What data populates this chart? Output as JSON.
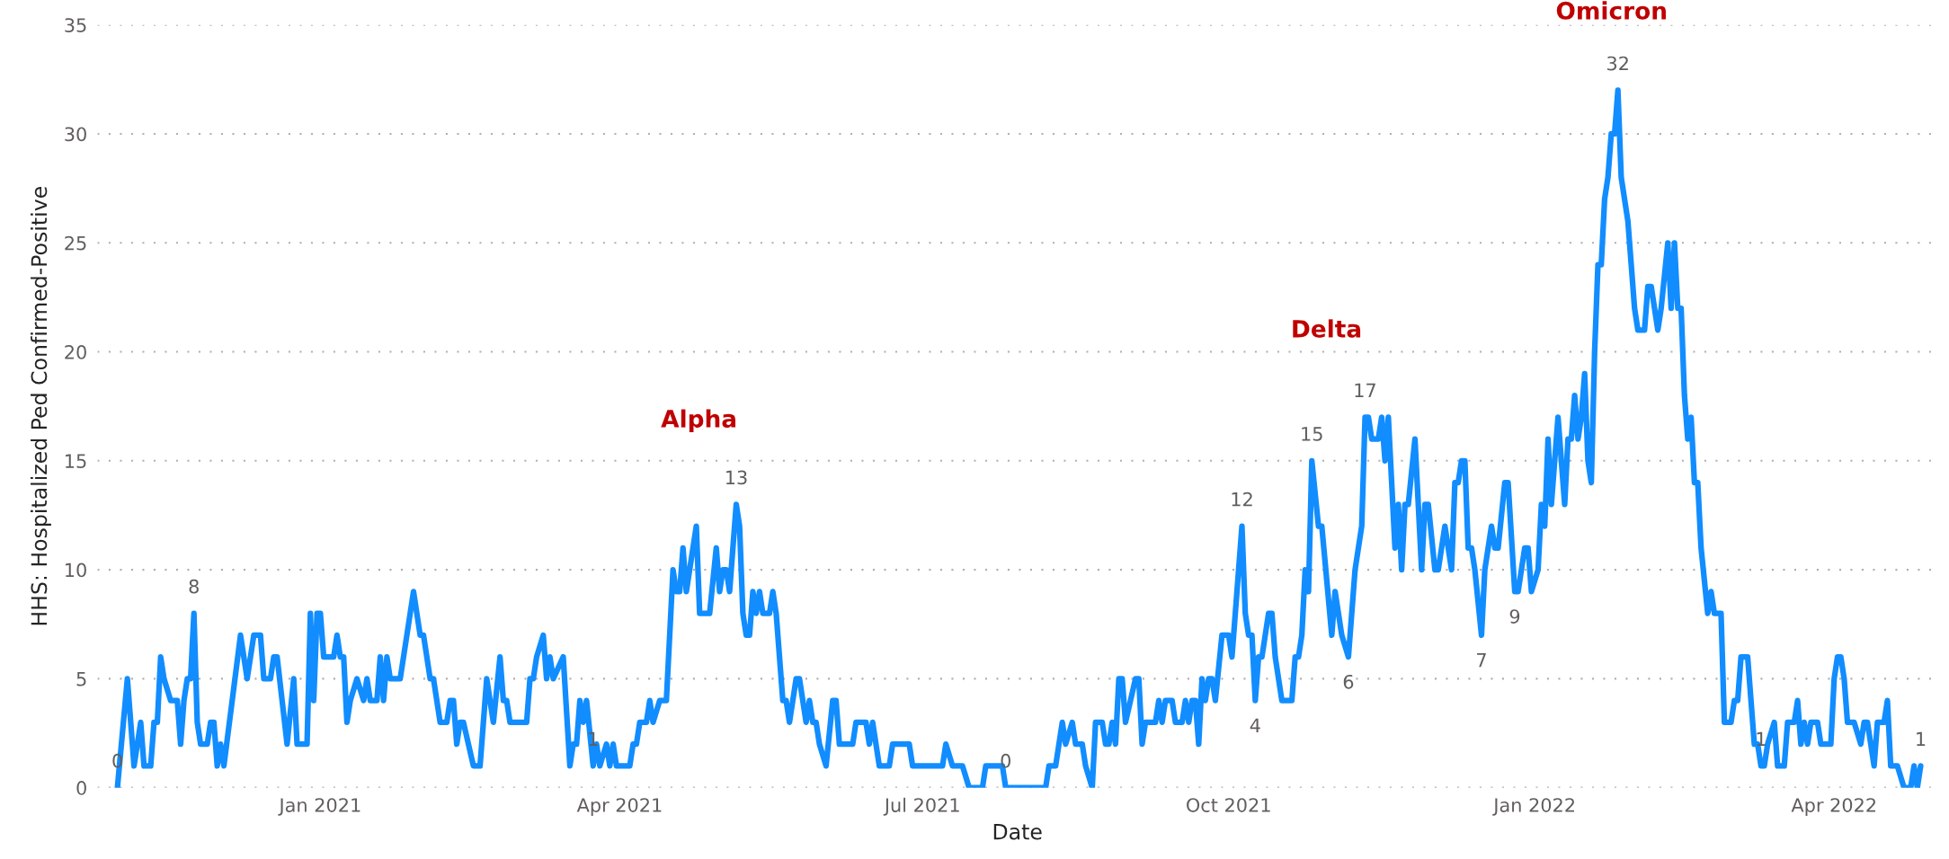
{
  "chart_data": {
    "type": "line",
    "xlabel": "Date",
    "ylabel": "HHS: Hospitalized Ped Confirmed-Positive",
    "x": [
      "2020-11-01",
      "2020-11-04",
      "2020-11-06",
      "2020-11-08",
      "2020-11-09",
      "2020-11-11",
      "2020-11-12",
      "2020-11-13",
      "2020-11-14",
      "2020-11-15",
      "2020-11-17",
      "2020-11-19",
      "2020-11-20",
      "2020-11-21",
      "2020-11-22",
      "2020-11-23",
      "2020-11-24",
      "2020-11-25",
      "2020-11-26",
      "2020-11-28",
      "2020-11-29",
      "2020-11-30",
      "2020-12-01",
      "2020-12-02",
      "2020-12-03",
      "2020-12-08",
      "2020-12-10",
      "2020-12-12",
      "2020-12-14",
      "2020-12-15",
      "2020-12-17",
      "2020-12-18",
      "2020-12-19",
      "2020-12-22",
      "2020-12-24",
      "2020-12-25",
      "2020-12-28",
      "2020-12-29",
      "2020-12-30",
      "2020-12-31",
      "2021-01-01",
      "2021-01-02",
      "2021-01-05",
      "2021-01-06",
      "2021-01-07",
      "2021-01-08",
      "2021-01-09",
      "2021-01-10",
      "2021-01-12",
      "2021-01-14",
      "2021-01-15",
      "2021-01-16",
      "2021-01-18",
      "2021-01-19",
      "2021-01-20",
      "2021-01-21",
      "2021-01-22",
      "2021-01-25",
      "2021-01-29",
      "2021-01-31",
      "2021-02-01",
      "2021-02-03",
      "2021-02-04",
      "2021-02-06",
      "2021-02-08",
      "2021-02-09",
      "2021-02-10",
      "2021-02-11",
      "2021-02-12",
      "2021-02-13",
      "2021-02-16",
      "2021-02-18",
      "2021-02-20",
      "2021-02-22",
      "2021-02-24",
      "2021-02-25",
      "2021-02-26",
      "2021-02-27",
      "2021-03-04",
      "2021-03-05",
      "2021-03-06",
      "2021-03-07",
      "2021-03-09",
      "2021-03-10",
      "2021-03-11",
      "2021-03-12",
      "2021-03-15",
      "2021-03-17",
      "2021-03-18",
      "2021-03-19",
      "2021-03-20",
      "2021-03-21",
      "2021-03-22",
      "2021-03-24",
      "2021-03-25",
      "2021-03-26",
      "2021-03-28",
      "2021-03-29",
      "2021-03-30",
      "2021-03-31",
      "2021-04-04",
      "2021-04-05",
      "2021-04-06",
      "2021-04-07",
      "2021-04-09",
      "2021-04-10",
      "2021-04-11",
      "2021-04-13",
      "2021-04-15",
      "2021-04-17",
      "2021-04-18",
      "2021-04-19",
      "2021-04-20",
      "2021-04-21",
      "2021-04-24",
      "2021-04-25",
      "2021-04-28",
      "2021-04-30",
      "2021-05-01",
      "2021-05-02",
      "2021-05-03",
      "2021-05-04",
      "2021-05-06",
      "2021-05-07",
      "2021-05-08",
      "2021-05-09",
      "2021-05-10",
      "2021-05-11",
      "2021-05-12",
      "2021-05-13",
      "2021-05-14",
      "2021-05-16",
      "2021-05-17",
      "2021-05-18",
      "2021-05-20",
      "2021-05-21",
      "2021-05-22",
      "2021-05-24",
      "2021-05-25",
      "2021-05-27",
      "2021-05-28",
      "2021-05-29",
      "2021-05-30",
      "2021-05-31",
      "2021-06-02",
      "2021-06-04",
      "2021-06-05",
      "2021-06-06",
      "2021-06-10",
      "2021-06-11",
      "2021-06-14",
      "2021-06-15",
      "2021-06-16",
      "2021-06-18",
      "2021-06-21",
      "2021-06-22",
      "2021-06-27",
      "2021-06-28",
      "2021-07-07",
      "2021-07-08",
      "2021-07-10",
      "2021-07-13",
      "2021-07-15",
      "2021-07-19",
      "2021-07-20",
      "2021-07-25",
      "2021-07-26",
      "2021-08-07",
      "2021-08-08",
      "2021-08-10",
      "2021-08-12",
      "2021-08-13",
      "2021-08-15",
      "2021-08-16",
      "2021-08-18",
      "2021-08-19",
      "2021-08-21",
      "2021-08-22",
      "2021-08-24",
      "2021-08-25",
      "2021-08-26",
      "2021-08-27",
      "2021-08-28",
      "2021-08-29",
      "2021-08-30",
      "2021-08-31",
      "2021-09-03",
      "2021-09-04",
      "2021-09-05",
      "2021-09-06",
      "2021-09-09",
      "2021-09-10",
      "2021-09-11",
      "2021-09-12",
      "2021-09-14",
      "2021-09-15",
      "2021-09-17",
      "2021-09-18",
      "2021-09-19",
      "2021-09-20",
      "2021-09-21",
      "2021-09-22",
      "2021-09-23",
      "2021-09-24",
      "2021-09-25",
      "2021-09-26",
      "2021-09-27",
      "2021-09-29",
      "2021-10-01",
      "2021-10-02",
      "2021-10-05",
      "2021-10-06",
      "2021-10-07",
      "2021-10-08",
      "2021-10-09",
      "2021-10-10",
      "2021-10-11",
      "2021-10-13",
      "2021-10-14",
      "2021-10-15",
      "2021-10-17",
      "2021-10-20",
      "2021-10-21",
      "2021-10-22",
      "2021-10-23",
      "2021-10-24",
      "2021-10-25",
      "2021-10-26",
      "2021-10-28",
      "2021-10-29",
      "2021-11-01",
      "2021-11-02",
      "2021-11-04",
      "2021-11-06",
      "2021-11-08",
      "2021-11-10",
      "2021-11-11",
      "2021-11-12",
      "2021-11-13",
      "2021-11-15",
      "2021-11-16",
      "2021-11-17",
      "2021-11-18",
      "2021-11-19",
      "2021-11-20",
      "2021-11-21",
      "2021-11-22",
      "2021-11-23",
      "2021-11-24",
      "2021-11-26",
      "2021-11-28",
      "2021-11-29",
      "2021-11-30",
      "2021-12-02",
      "2021-12-03",
      "2021-12-05",
      "2021-12-07",
      "2021-12-08",
      "2021-12-09",
      "2021-12-10",
      "2021-12-11",
      "2021-12-12",
      "2021-12-13",
      "2021-12-14",
      "2021-12-16",
      "2021-12-17",
      "2021-12-19",
      "2021-12-20",
      "2021-12-21",
      "2021-12-23",
      "2021-12-24",
      "2021-12-26",
      "2021-12-27",
      "2021-12-29",
      "2021-12-30",
      "2021-12-31",
      "2022-01-02",
      "2022-01-03",
      "2022-01-04",
      "2022-01-05",
      "2022-01-06",
      "2022-01-08",
      "2022-01-10",
      "2022-01-11",
      "2022-01-12",
      "2022-01-13",
      "2022-01-14",
      "2022-01-15",
      "2022-01-16",
      "2022-01-17",
      "2022-01-18",
      "2022-01-19",
      "2022-01-20",
      "2022-01-21",
      "2022-01-22",
      "2022-01-23",
      "2022-01-24",
      "2022-01-25",
      "2022-01-26",
      "2022-01-27",
      "2022-01-29",
      "2022-01-30",
      "2022-01-31",
      "2022-02-01",
      "2022-02-03",
      "2022-02-04",
      "2022-02-05",
      "2022-02-07",
      "2022-02-08",
      "2022-02-10",
      "2022-02-11",
      "2022-02-12",
      "2022-02-13",
      "2022-02-14",
      "2022-02-15",
      "2022-02-16",
      "2022-02-17",
      "2022-02-18",
      "2022-02-19",
      "2022-02-20",
      "2022-02-22",
      "2022-02-23",
      "2022-02-24",
      "2022-02-26",
      "2022-02-27",
      "2022-03-01",
      "2022-03-02",
      "2022-03-03",
      "2022-03-04",
      "2022-03-06",
      "2022-03-08",
      "2022-03-09",
      "2022-03-10",
      "2022-03-11",
      "2022-03-12",
      "2022-03-14",
      "2022-03-15",
      "2022-03-17",
      "2022-03-18",
      "2022-03-20",
      "2022-03-21",
      "2022-03-22",
      "2022-03-23",
      "2022-03-24",
      "2022-03-25",
      "2022-03-27",
      "2022-03-28",
      "2022-03-31",
      "2022-04-01",
      "2022-04-02",
      "2022-04-03",
      "2022-04-04",
      "2022-04-05",
      "2022-04-07",
      "2022-04-09",
      "2022-04-10",
      "2022-04-11",
      "2022-04-13",
      "2022-04-14",
      "2022-04-16",
      "2022-04-17",
      "2022-04-18",
      "2022-04-20",
      "2022-04-22",
      "2022-04-24",
      "2022-04-25",
      "2022-04-26",
      "2022-04-27"
    ],
    "values": [
      0,
      5,
      1,
      3,
      1,
      1,
      3,
      3,
      6,
      5,
      4,
      4,
      2,
      4,
      5,
      5,
      8,
      3,
      2,
      2,
      3,
      3,
      1,
      2,
      1,
      7,
      5,
      7,
      7,
      5,
      5,
      6,
      6,
      2,
      5,
      2,
      2,
      8,
      4,
      8,
      8,
      6,
      6,
      7,
      6,
      6,
      3,
      4,
      5,
      4,
      5,
      4,
      4,
      6,
      4,
      6,
      5,
      5,
      9,
      7,
      7,
      5,
      5,
      3,
      3,
      4,
      4,
      2,
      3,
      3,
      1,
      1,
      5,
      3,
      6,
      4,
      4,
      3,
      3,
      5,
      5,
      6,
      7,
      5,
      6,
      5,
      6,
      1,
      2,
      2,
      4,
      3,
      4,
      1,
      2,
      1,
      2,
      1,
      2,
      1,
      1,
      2,
      2,
      3,
      3,
      4,
      3,
      4,
      4,
      10,
      9,
      9,
      11,
      9,
      12,
      8,
      8,
      11,
      9,
      10,
      10,
      9,
      13,
      12,
      8,
      7,
      7,
      9,
      8,
      9,
      8,
      8,
      9,
      8,
      4,
      4,
      3,
      5,
      5,
      3,
      4,
      3,
      3,
      2,
      1,
      4,
      4,
      2,
      2,
      3,
      3,
      2,
      3,
      1,
      1,
      2,
      2,
      1,
      1,
      2,
      1,
      1,
      0,
      0,
      1,
      1,
      0,
      0,
      1,
      1,
      3,
      2,
      3,
      2,
      2,
      1,
      0,
      3,
      3,
      2,
      2,
      3,
      2,
      5,
      5,
      3,
      5,
      5,
      2,
      3,
      3,
      4,
      3,
      4,
      4,
      3,
      3,
      4,
      3,
      4,
      4,
      2,
      5,
      4,
      5,
      5,
      4,
      7,
      7,
      6,
      12,
      8,
      7,
      7,
      4,
      6,
      6,
      8,
      8,
      6,
      4,
      4,
      6,
      6,
      7,
      10,
      9,
      15,
      12,
      12,
      7,
      9,
      7,
      6,
      10,
      12,
      17,
      17,
      16,
      16,
      17,
      15,
      17,
      14,
      11,
      13,
      10,
      13,
      13,
      16,
      10,
      13,
      13,
      10,
      10,
      12,
      10,
      14,
      14,
      15,
      15,
      11,
      11,
      10,
      7,
      10,
      12,
      11,
      11,
      14,
      14,
      9,
      9,
      11,
      11,
      9,
      10,
      13,
      12,
      16,
      13,
      17,
      13,
      16,
      16,
      18,
      16,
      17,
      19,
      15,
      14,
      20,
      24,
      24,
      27,
      28,
      30,
      30,
      32,
      28,
      26,
      24,
      22,
      21,
      21,
      23,
      23,
      21,
      22,
      25,
      22,
      25,
      22,
      22,
      18,
      16,
      17,
      14,
      14,
      11,
      8,
      9,
      8,
      8,
      3,
      3,
      4,
      4,
      6,
      6,
      2,
      2,
      1,
      1,
      2,
      3,
      1,
      1,
      3,
      3,
      4,
      2,
      3,
      2,
      3,
      3,
      2,
      2,
      5,
      6,
      6,
      5,
      3,
      3,
      2,
      3,
      3,
      1,
      3,
      3,
      4,
      1,
      1,
      0,
      0,
      1,
      0,
      1
    ],
    "value_labels": [
      "0",
      null,
      null,
      null,
      null,
      null,
      null,
      null,
      null,
      null,
      null,
      null,
      null,
      null,
      null,
      null,
      "8",
      null,
      null,
      null,
      null,
      null,
      null,
      null,
      null,
      null,
      null,
      null,
      null,
      null,
      null,
      null,
      null,
      null,
      null,
      null,
      null,
      null,
      null,
      null,
      null,
      null,
      null,
      null,
      null,
      null,
      null,
      null,
      null,
      null,
      null,
      null,
      null,
      null,
      null,
      null,
      null,
      null,
      null,
      null,
      null,
      null,
      null,
      null,
      null,
      null,
      null,
      null,
      null,
      null,
      null,
      null,
      null,
      null,
      null,
      null,
      null,
      null,
      null,
      null,
      null,
      null,
      null,
      null,
      null,
      null,
      null,
      null,
      null,
      null,
      null,
      null,
      null,
      "1",
      null,
      null,
      null,
      null,
      null,
      null,
      null,
      null,
      null,
      null,
      null,
      null,
      null,
      null,
      null,
      null,
      null,
      null,
      null,
      null,
      null,
      null,
      null,
      null,
      null,
      null,
      null,
      null,
      "13",
      null,
      null,
      null,
      null,
      null,
      null,
      null,
      null,
      null,
      null,
      null,
      null,
      null,
      null,
      null,
      null,
      null,
      null,
      null,
      null,
      null,
      null,
      null,
      null,
      null,
      null,
      null,
      null,
      null,
      null,
      null,
      null,
      null,
      null,
      null,
      null,
      null,
      null,
      null,
      null,
      null,
      null,
      null,
      "0",
      null,
      null,
      null,
      null,
      null,
      null,
      null,
      null,
      null,
      null,
      null,
      null,
      null,
      null,
      null,
      null,
      null,
      null,
      null,
      null,
      null,
      null,
      null,
      null,
      null,
      null,
      null,
      null,
      null,
      null,
      null,
      null,
      null,
      null,
      null,
      null,
      null,
      null,
      null,
      null,
      null,
      null,
      null,
      "12",
      null,
      null,
      null,
      "4",
      null,
      null,
      null,
      null,
      null,
      null,
      null,
      null,
      null,
      null,
      null,
      null,
      "15",
      null,
      null,
      null,
      null,
      null,
      "6",
      null,
      null,
      "17",
      null,
      null,
      null,
      null,
      null,
      null,
      null,
      null,
      null,
      null,
      null,
      null,
      null,
      null,
      null,
      null,
      null,
      null,
      null,
      null,
      null,
      null,
      null,
      null,
      null,
      null,
      null,
      "7",
      null,
      null,
      null,
      null,
      null,
      null,
      "9",
      null,
      null,
      null,
      null,
      null,
      null,
      null,
      null,
      null,
      null,
      null,
      null,
      null,
      null,
      null,
      null,
      null,
      null,
      null,
      null,
      null,
      null,
      null,
      null,
      null,
      null,
      "32",
      null,
      null,
      null,
      null,
      null,
      null,
      null,
      null,
      null,
      null,
      null,
      null,
      null,
      null,
      null,
      null,
      null,
      null,
      null,
      null,
      null,
      null,
      null,
      null,
      null,
      null,
      null,
      null,
      null,
      null,
      null,
      null,
      null,
      "1",
      null,
      null,
      null,
      null,
      null,
      null,
      null,
      null,
      null,
      null,
      null,
      null,
      null,
      null,
      null,
      null,
      null,
      null,
      null,
      null,
      null,
      null,
      null,
      null,
      null,
      null,
      null,
      null,
      null,
      null,
      null,
      null,
      null,
      null,
      "1"
    ],
    "color": "#118dff",
    "xlim": [
      "2020-10-26",
      "2022-05-02"
    ],
    "xticks": [
      {
        "value": "2021-01-01",
        "label": "Jan 2021"
      },
      {
        "value": "2021-04-01",
        "label": "Apr 2021"
      },
      {
        "value": "2021-07-01",
        "label": "Jul 2021"
      },
      {
        "value": "2021-10-01",
        "label": "Oct 2021"
      },
      {
        "value": "2022-01-01",
        "label": "Jan 2022"
      },
      {
        "value": "2022-04-01",
        "label": "Apr 2022"
      }
    ],
    "ylim": [
      0,
      35
    ],
    "yticks": [
      0,
      5,
      10,
      15,
      20,
      25,
      30,
      35
    ],
    "grid": "y",
    "annotations": [
      "Alpha",
      "Delta",
      "Omicron"
    ]
  }
}
